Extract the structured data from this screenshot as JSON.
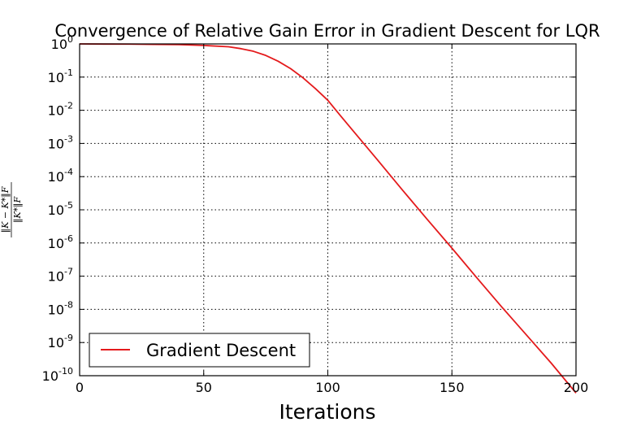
{
  "chart_data": {
    "type": "line",
    "title": "Convergence of Relative Gain Error in Gradient Descent for LQR",
    "xlabel": "Iterations",
    "ylabel": {
      "numerator": "‖K − K*‖F",
      "denominator": "‖K*‖F"
    },
    "xlim": [
      0,
      200
    ],
    "ylim": [
      1e-10,
      1
    ],
    "yscale": "log",
    "grid": true,
    "legend_location": "lower-left",
    "x_ticks": [
      "0",
      "50",
      "100",
      "150",
      "200"
    ],
    "y_ticks": [
      {
        "base": "10",
        "exp": "0"
      },
      {
        "base": "10",
        "exp": "-1"
      },
      {
        "base": "10",
        "exp": "-2"
      },
      {
        "base": "10",
        "exp": "-3"
      },
      {
        "base": "10",
        "exp": "-4"
      },
      {
        "base": "10",
        "exp": "-5"
      },
      {
        "base": "10",
        "exp": "-6"
      },
      {
        "base": "10",
        "exp": "-7"
      },
      {
        "base": "10",
        "exp": "-8"
      },
      {
        "base": "10",
        "exp": "-9"
      },
      {
        "base": "10",
        "exp": "-10"
      }
    ],
    "series": [
      {
        "name": "Gradient Descent",
        "color": "#e41a1c",
        "x": [
          0,
          10,
          20,
          30,
          40,
          50,
          60,
          65,
          70,
          75,
          80,
          85,
          90,
          95,
          100,
          105,
          110,
          120,
          130,
          140,
          150,
          160,
          170,
          180,
          190,
          200
        ],
        "y": [
          1.0,
          0.99,
          0.985,
          0.97,
          0.95,
          0.9,
          0.82,
          0.72,
          0.6,
          0.45,
          0.3,
          0.18,
          0.095,
          0.045,
          0.02,
          0.007,
          0.0025,
          0.00032,
          4e-05,
          5.2e-06,
          7e-07,
          9e-08,
          1.2e-08,
          1.7e-09,
          2.4e-10,
          3e-11
        ]
      }
    ]
  }
}
